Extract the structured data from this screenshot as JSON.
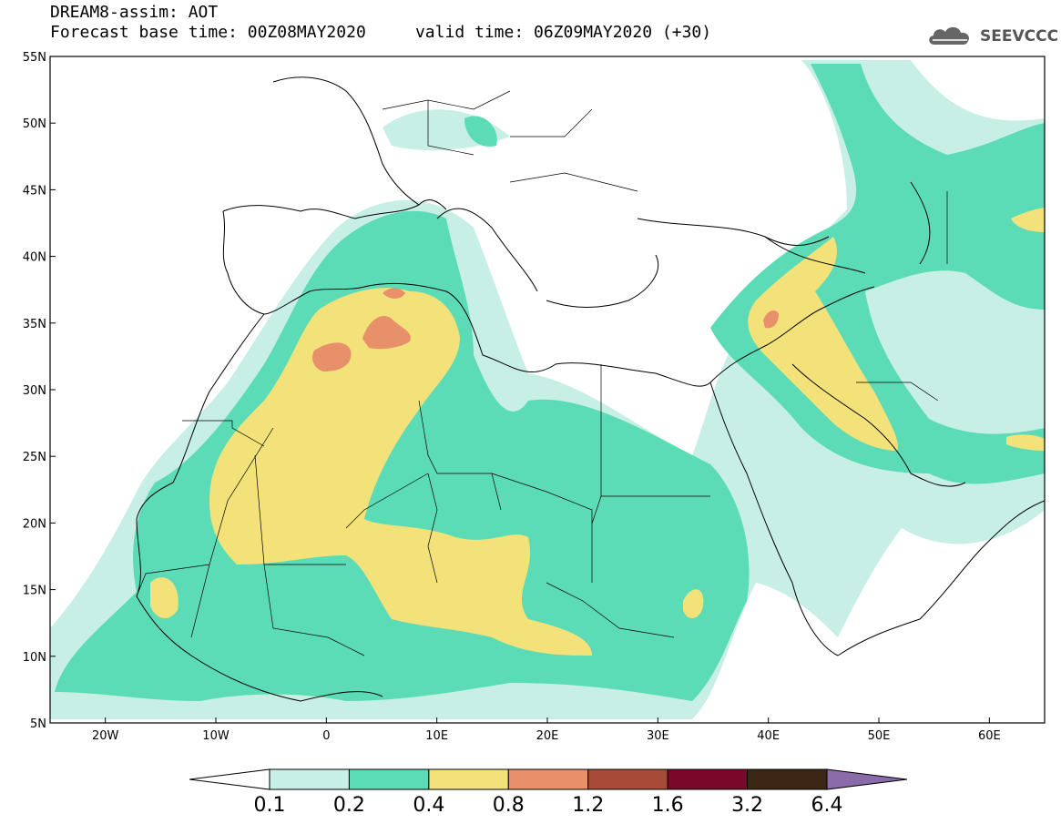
{
  "header": {
    "line1": "DREAM8-assim: AOT",
    "line2": "Forecast base time: 00Z08MAY2020     valid time: 06Z09MAY2020 (+30)"
  },
  "logo": {
    "text": "SEEVCCC",
    "icon": "cloud-icon"
  },
  "map": {
    "projection": "lat-lon",
    "lon_range": [
      -25,
      65
    ],
    "lat_range": [
      5,
      55
    ],
    "lat_ticks": [
      "55N",
      "50N",
      "45N",
      "40N",
      "35N",
      "30N",
      "25N",
      "20N",
      "15N",
      "10N",
      "5N"
    ],
    "lon_ticks": [
      "20W",
      "10W",
      "0",
      "10E",
      "20E",
      "30E",
      "40E",
      "50E",
      "60E"
    ],
    "field": "Aerosol optical thickness (AOT)"
  },
  "colorbar": {
    "levels": [
      "0.1",
      "0.2",
      "0.4",
      "0.8",
      "1.2",
      "1.6",
      "3.2",
      "6.4"
    ],
    "colors": [
      "#ffffff",
      "#c8efe6",
      "#5cdcb6",
      "#f3e27a",
      "#e8906a",
      "#a84a38",
      "#7a0828",
      "#3b2714",
      "#8a6aa8"
    ]
  }
}
